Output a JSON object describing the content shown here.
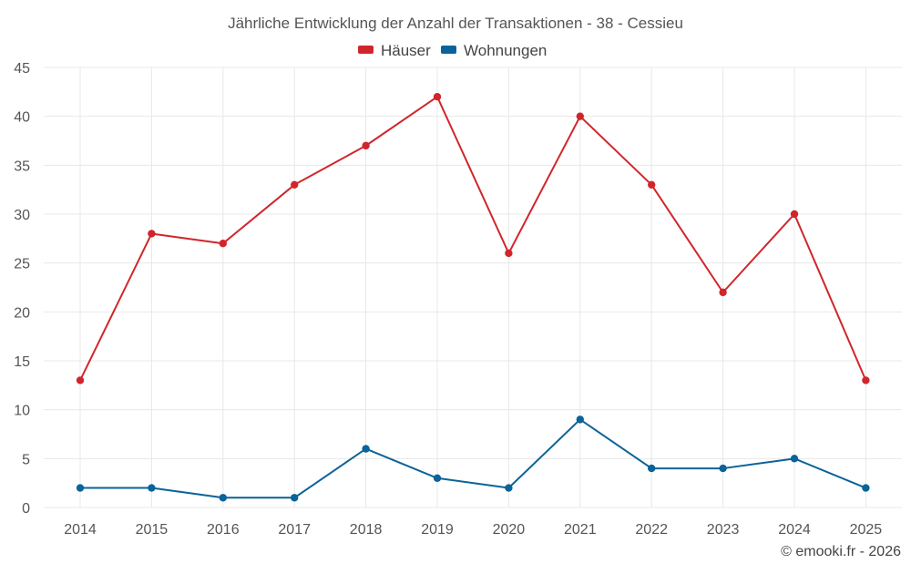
{
  "chart_data": {
    "type": "line",
    "title": "Jährliche Entwicklung der Anzahl der Transaktionen - 38 - Cessieu",
    "categories": [
      "2014",
      "2015",
      "2016",
      "2017",
      "2018",
      "2019",
      "2020",
      "2021",
      "2022",
      "2023",
      "2024",
      "2025"
    ],
    "series": [
      {
        "name": "Häuser",
        "color": "#d0262b",
        "values": [
          13,
          28,
          27,
          33,
          37,
          42,
          26,
          40,
          33,
          22,
          30,
          13
        ]
      },
      {
        "name": "Wohnungen",
        "color": "#0a6399",
        "values": [
          2,
          2,
          1,
          1,
          6,
          3,
          2,
          9,
          4,
          4,
          5,
          2
        ]
      }
    ],
    "ylim": [
      0,
      45
    ],
    "yticks": [
      "0",
      "5",
      "10",
      "15",
      "20",
      "25",
      "30",
      "35",
      "40",
      "45"
    ],
    "grid": true,
    "legend_position": "top-center"
  },
  "credit": "© emooki.fr - 2026"
}
